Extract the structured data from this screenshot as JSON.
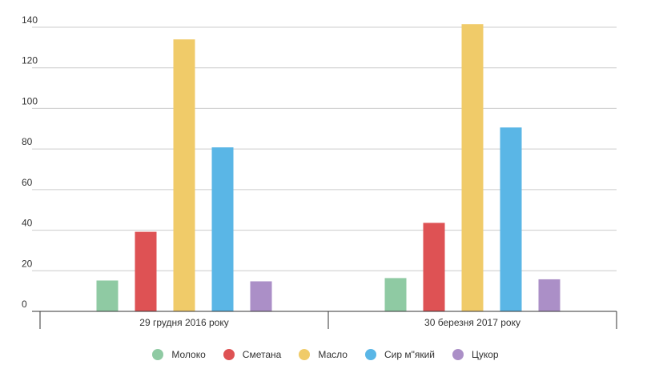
{
  "chart_data": {
    "type": "bar",
    "categories": [
      "29 грудня 2016 року",
      "30 березня 2017 року"
    ],
    "series": [
      {
        "name": "Молоко",
        "color": "#8fcaa3",
        "values": [
          15.2,
          16.4
        ]
      },
      {
        "name": "Сметана",
        "color": "#de5254",
        "values": [
          39.2,
          43.6
        ]
      },
      {
        "name": "Масло",
        "color": "#f0cb69",
        "values": [
          134,
          141.5
        ]
      },
      {
        "name": "Сир м\"який",
        "color": "#5ab6e6",
        "values": [
          80.8,
          90.6
        ]
      },
      {
        "name": "Цукор",
        "color": "#ab8fc7",
        "values": [
          14.8,
          15.8
        ]
      }
    ],
    "yticks": [
      "0",
      "20",
      "40",
      "60",
      "80",
      "100",
      "120",
      "140"
    ],
    "ylim": [
      0,
      140
    ],
    "grid": true,
    "legend_position": "bottom",
    "title": "",
    "xlabel": "",
    "ylabel": ""
  }
}
